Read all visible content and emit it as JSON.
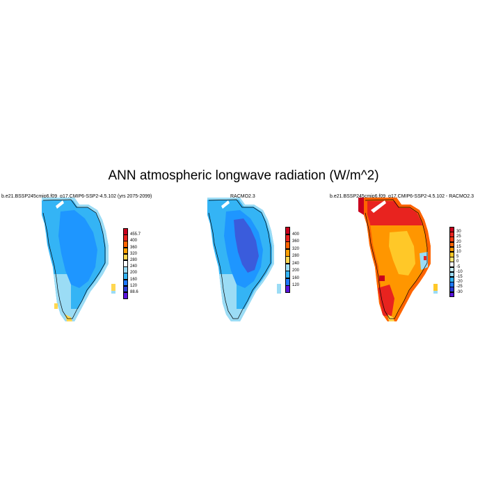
{
  "title": "ANN atmospheric longwave radiation (W/m^2)",
  "panels": [
    {
      "title": "b.e21.BSSP245cmip6.f09_g17.CMIP6-SSP2-4.5.102 (yrs 2075-2099)",
      "colorbar": {
        "labels": [
          "455.7",
          "400",
          "360",
          "320",
          "280",
          "240",
          "200",
          "160",
          "120",
          "88.6"
        ],
        "colors": [
          "#c8001e",
          "#e8231f",
          "#ff6400",
          "#ffa000",
          "#ffd750",
          "#ffffff",
          "#9bdcf5",
          "#34b4f5",
          "#1e78ff",
          "#2a3cd2",
          "#5a14dc"
        ]
      }
    },
    {
      "title": "RACMO2.3",
      "colorbar": {
        "labels": [
          "400",
          "360",
          "320",
          "280",
          "240",
          "200",
          "160",
          "120"
        ],
        "colors": [
          "#c8001e",
          "#e8231f",
          "#ff6400",
          "#ffa000",
          "#ffd750",
          "#9bdcf5",
          "#34b4f5",
          "#1e78ff",
          "#5a14dc"
        ]
      }
    },
    {
      "title": "b.e21.BSSP245cmip6.f09_g17.CMIP6-SSP2-4.5.102 - RACMO2.3",
      "colorbar": {
        "labels": [
          "30",
          "25",
          "20",
          "15",
          "10",
          "5",
          "0",
          "-5",
          "-10",
          "-15",
          "-20",
          "-25",
          "-30"
        ],
        "colors": [
          "#c8001e",
          "#e8231f",
          "#ff3c14",
          "#ff6400",
          "#ff9600",
          "#ffc828",
          "#ffe678",
          "#ffffff",
          "#c8f0ff",
          "#9bdcf5",
          "#34b4f5",
          "#1e78ff",
          "#2a3cd2",
          "#5a14dc"
        ]
      }
    }
  ]
}
